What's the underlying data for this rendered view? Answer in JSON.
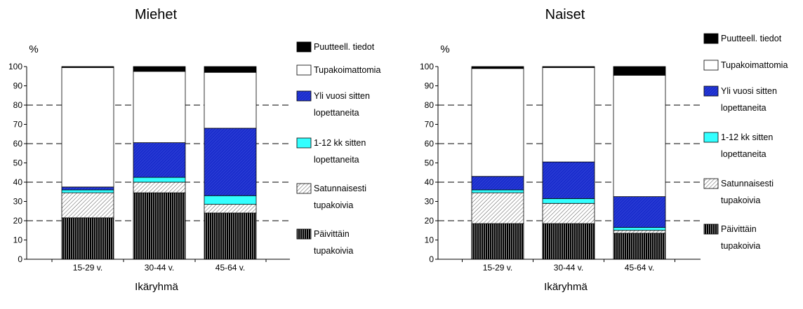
{
  "chart_data": [
    {
      "type": "bar",
      "stacked": true,
      "title": "Miehet",
      "xlabel": "Ikäryhmä",
      "ylabel": "%",
      "ylim": [
        0,
        100
      ],
      "yticks": [
        0,
        10,
        20,
        30,
        40,
        50,
        60,
        70,
        80,
        90,
        100
      ],
      "categories": [
        "15-29 v.",
        "30-44 v.",
        "45-64 v."
      ],
      "grid": "dashed horizontal lines at 20, 40, 60, 80",
      "legend_position": "right",
      "series": [
        {
          "name": "Päivittäin tupakoivia",
          "values": [
            21.5,
            34.5,
            24
          ]
        },
        {
          "name": "Satunnaisesti tupakoivia",
          "values": [
            13,
            5.5,
            4.5
          ]
        },
        {
          "name": "1-12 kk sitten lopettaneita",
          "values": [
            1.5,
            2.5,
            4.5
          ]
        },
        {
          "name": "Yli vuosi sitten lopettaneita",
          "values": [
            1.5,
            18,
            35
          ]
        },
        {
          "name": "Tupakoimattomia",
          "values": [
            62,
            37,
            29
          ]
        },
        {
          "name": "Puutteell. tiedot",
          "values": [
            0.5,
            2.5,
            3
          ]
        }
      ],
      "legend_labels": [
        {
          "line1": "Puutteell. tiedot",
          "line2": ""
        },
        {
          "line1": "Tupakoimattomia",
          "line2": ""
        },
        {
          "line1": "Yli vuosi sitten",
          "line2": "lopettaneita"
        },
        {
          "line1": "1-12 kk sitten",
          "line2": "lopettaneita"
        },
        {
          "line1": "Satunnaisesti",
          "line2": "tupakoivia"
        },
        {
          "line1": "Päivittäin",
          "line2": "tupakoivia"
        }
      ]
    },
    {
      "type": "bar",
      "stacked": true,
      "title": "Naiset",
      "xlabel": "Ikäryhmä",
      "ylabel": "%",
      "ylim": [
        0,
        100
      ],
      "yticks": [
        0,
        10,
        20,
        30,
        40,
        50,
        60,
        70,
        80,
        90,
        100
      ],
      "categories": [
        "15-29 v.",
        "30-44 v.",
        "45-64 v."
      ],
      "grid": "dashed horizontal lines at 20, 40, 60, 80",
      "legend_position": "right",
      "series": [
        {
          "name": "Päivittäin tupakoivia",
          "values": [
            18.5,
            18.5,
            13.5
          ]
        },
        {
          "name": "Satunnaisesti tupakoivia",
          "values": [
            16,
            10.5,
            1.5
          ]
        },
        {
          "name": "1-12 kk sitten lopettaneita",
          "values": [
            1.5,
            2.5,
            1.5
          ]
        },
        {
          "name": "Yli vuosi sitten lopettaneita",
          "values": [
            7,
            19,
            16
          ]
        },
        {
          "name": "Tupakoimattomia",
          "values": [
            56,
            49,
            63
          ]
        },
        {
          "name": "Puutteell. tiedot",
          "values": [
            1,
            0.5,
            4.5
          ]
        }
      ],
      "legend_labels": [
        {
          "line1": "Puutteell. tiedot",
          "line2": ""
        },
        {
          "line1": "Tupakoimattomia",
          "line2": ""
        },
        {
          "line1": "Yli vuosi sitten",
          "line2": "lopettaneita"
        },
        {
          "line1": "1-12 kk sitten",
          "line2": "lopettaneita"
        },
        {
          "line1": "Satunnaisesti",
          "line2": "tupakoivia"
        },
        {
          "line1": "Päivittäin",
          "line2": "tupakoivia"
        }
      ]
    }
  ]
}
